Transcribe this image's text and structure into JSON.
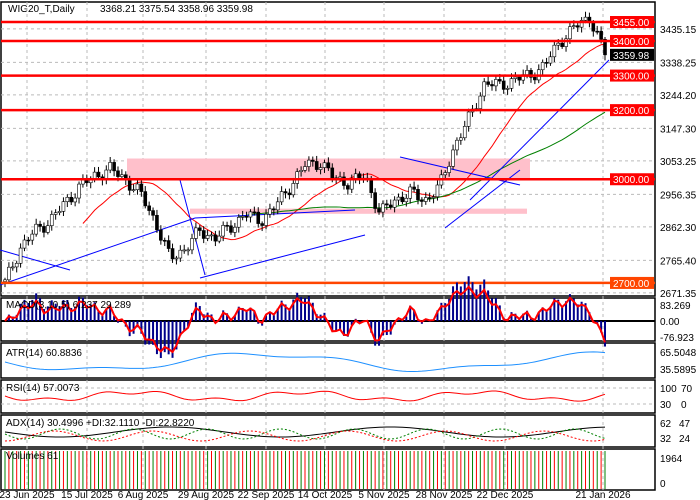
{
  "header": {
    "symbol": "WIG20_T,Daily",
    "ohlc": "3368.21 3375.54 3358.96 3359.98"
  },
  "chart_data": {
    "type": "candlestick",
    "title": "WIG20_T,Daily",
    "ylim": [
      2660,
      3480
    ],
    "price_ticks": [
      "3435.15",
      "3338.25",
      "3244.20",
      "3147.30",
      "3053.25",
      "2956.35",
      "2862.30",
      "2765.40",
      "2671.35"
    ],
    "level_lines": [
      {
        "label": "3455.00",
        "value": 3455,
        "color": "#ff0000"
      },
      {
        "label": "3400.00",
        "value": 3400,
        "color": "#ff0000"
      },
      {
        "label": "3300.00",
        "value": 3300,
        "color": "#ff0000"
      },
      {
        "label": "3200.00",
        "value": 3200,
        "color": "#ff0000"
      },
      {
        "label": "3000.00",
        "value": 3000,
        "color": "#ff0000"
      },
      {
        "label": "2700.00",
        "value": 2700,
        "color": "#ff4500"
      }
    ],
    "current_price": "3359.98",
    "close_path": [
      2700,
      2800,
      2850,
      2880,
      2930,
      2980,
      3010,
      3030,
      3000,
      2960,
      2880,
      2770,
      2800,
      2850,
      2830,
      2860,
      2900,
      2880,
      2920,
      2980,
      3040,
      3050,
      3000,
      2990,
      3010,
      2900,
      2940,
      2960,
      2940,
      2980,
      3100,
      3180,
      3280,
      3270,
      3290,
      3300,
      3330,
      3400,
      3440,
      3470,
      3360
    ],
    "zones": [
      {
        "from": 3000,
        "to": 3060
      },
      {
        "from": 2900,
        "to": 2915
      }
    ],
    "x_labels": [
      "23 Jun 2025",
      "15 Jul 2025",
      "6 Aug 2025",
      "29 Aug 2025",
      "22 Sep 2025",
      "14 Oct 2025",
      "5 Nov 2025",
      "28 Nov 2025",
      "22 Dec 2025",
      "21 Jan 2026"
    ],
    "indicators": {
      "macd": {
        "label": "MACD(3,10,5) 6.237 29.289",
        "ticks": [
          "83.269",
          "0.00",
          "-76.923"
        ]
      },
      "atr": {
        "label": "ATR(14) 60.8836",
        "ticks": [
          "65.5048",
          "35.5895"
        ]
      },
      "rsi": {
        "label": "RSI(14) 57.0073",
        "ticks": [
          "100",
          "70",
          "30",
          "0"
        ]
      },
      "adx": {
        "label": "ADX(14) 30.4996 +DI:32.1110 -DI:22.8220",
        "ticks": [
          "62",
          "47",
          "32",
          "24"
        ]
      },
      "volume": {
        "label": "Volumes 61",
        "ticks": [
          "1964",
          "0"
        ]
      }
    }
  }
}
